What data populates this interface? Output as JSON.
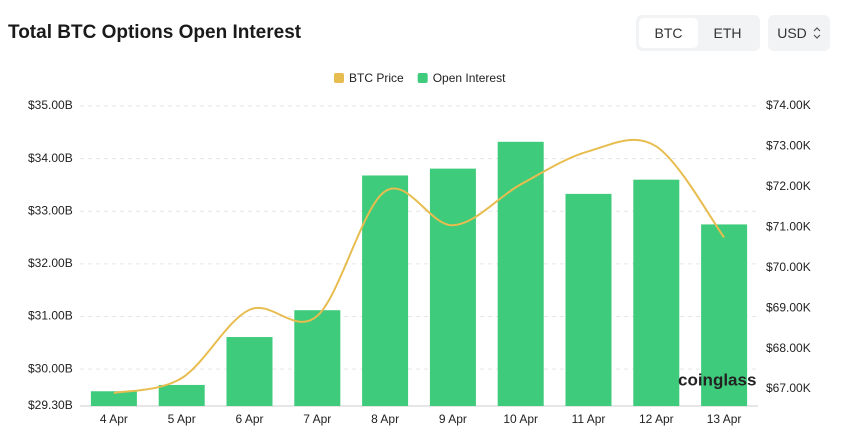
{
  "header": {
    "title": "Total BTC Options Open Interest",
    "tabs": [
      "BTC",
      "ETH"
    ],
    "currency": "USD"
  },
  "chart_data": {
    "type": "bar",
    "categories": [
      "4 Apr",
      "5 Apr",
      "6 Apr",
      "7 Apr",
      "8 Apr",
      "9 Apr",
      "10 Apr",
      "11 Apr",
      "12 Apr",
      "13 Apr"
    ],
    "series": [
      {
        "name": "BTC Price",
        "type": "line",
        "axis": "y2",
        "color": "#e8bd4f",
        "values": [
          66.9,
          67.27,
          68.96,
          68.81,
          71.89,
          71.05,
          72.06,
          72.88,
          73.0,
          70.75
        ]
      },
      {
        "name": "Open Interest",
        "type": "bar",
        "color": "#3ecb7b",
        "values": [
          29.58,
          29.7,
          30.61,
          31.12,
          33.68,
          33.81,
          34.32,
          33.33,
          33.6,
          32.75
        ]
      }
    ],
    "ylim": [
      29.3,
      35
    ],
    "yticks": [
      {
        "value": 29.3,
        "label": "$29.30B"
      },
      {
        "value": 30,
        "label": "$30.00B"
      },
      {
        "value": 31,
        "label": "$31.00B"
      },
      {
        "value": 32,
        "label": "$32.00B"
      },
      {
        "value": 33,
        "label": "$33.00B"
      },
      {
        "value": 34,
        "label": "$34.00B"
      },
      {
        "value": 35,
        "label": "$35.00B"
      }
    ],
    "y2lim": [
      66.58,
      74
    ],
    "y2ticks": [
      {
        "value": 67,
        "label": "$67.00K"
      },
      {
        "value": 68,
        "label": "$68.00K"
      },
      {
        "value": 69,
        "label": "$69.00K"
      },
      {
        "value": 70,
        "label": "$70.00K"
      },
      {
        "value": 71,
        "label": "$71.00K"
      },
      {
        "value": 72,
        "label": "$72.00K"
      },
      {
        "value": 73,
        "label": "$73.00K"
      },
      {
        "value": 74,
        "label": "$74.00K"
      }
    ],
    "grid": true,
    "watermark": "coinglass"
  }
}
